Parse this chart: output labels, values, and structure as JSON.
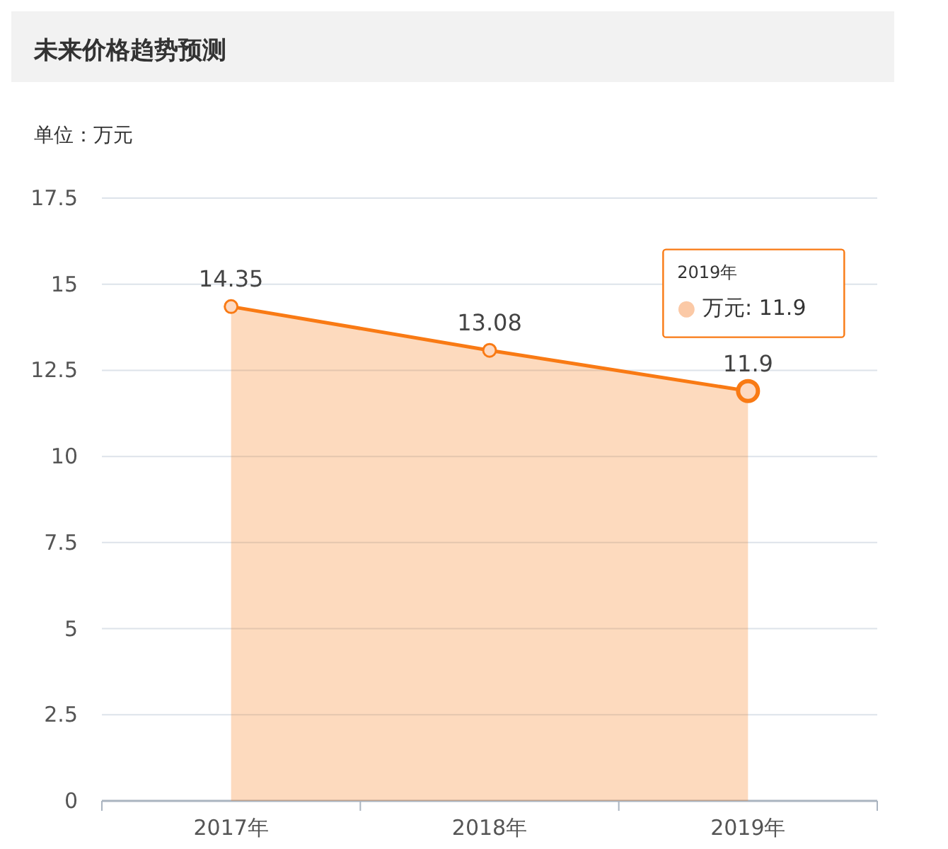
{
  "chart_data": {
    "type": "area",
    "title": "未来价格趋势预测",
    "subtitle": "单位：万元",
    "categories": [
      "2017年",
      "2018年",
      "2019年"
    ],
    "series": [
      {
        "color": "#f97a14",
        "values": [
          14.35,
          13.08,
          11.9
        ]
      }
    ],
    "ylim": [
      0,
      17.5
    ],
    "yticks": [
      0,
      2.5,
      5,
      7.5,
      10,
      12.5,
      15,
      17.5
    ],
    "grid": "y",
    "marker": "circle",
    "data_labels": true,
    "annotations": [
      "2019年",
      "● 万元: 11.9"
    ]
  }
}
